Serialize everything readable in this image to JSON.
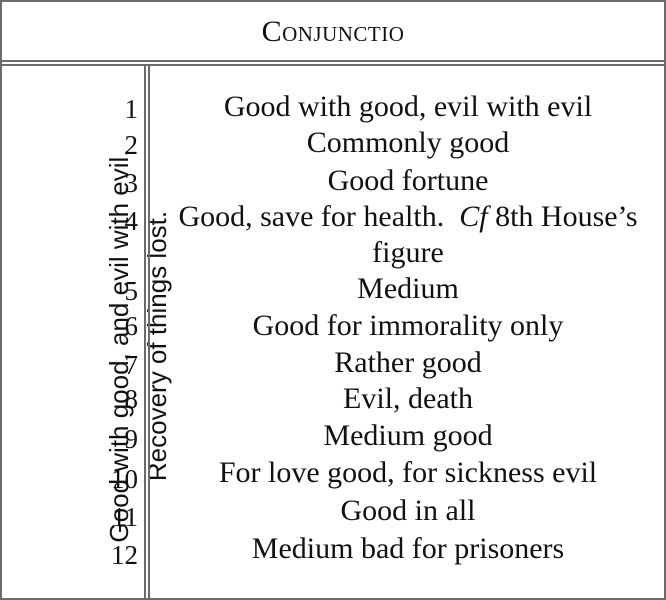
{
  "title": "Conjunctio",
  "side_label": {
    "line1": "Good with good, and evil with evil.",
    "line2": "Recovery of things lost."
  },
  "rows": [
    {
      "num": "1",
      "text": "Good with good, evil with evil"
    },
    {
      "num": "2",
      "text": "Commonly good"
    },
    {
      "num": "3",
      "text": "Good fortune"
    },
    {
      "num": "4",
      "text_before": "Good, save for health.",
      "text_italic": "Cf",
      "text_after": "8th House’s",
      "text_line2": "figure"
    },
    {
      "num": "5",
      "text": "Medium"
    },
    {
      "num": "6",
      "text": "Good for immorality only"
    },
    {
      "num": "7",
      "text": "Rather good"
    },
    {
      "num": "8",
      "text": "Evil, death"
    },
    {
      "num": "9",
      "text": "Medium good"
    },
    {
      "num": "10",
      "text": "For love good, for sickness evil"
    },
    {
      "num": "11",
      "text": "Good in all"
    },
    {
      "num": "12",
      "text": "Medium bad for prisoners"
    }
  ]
}
